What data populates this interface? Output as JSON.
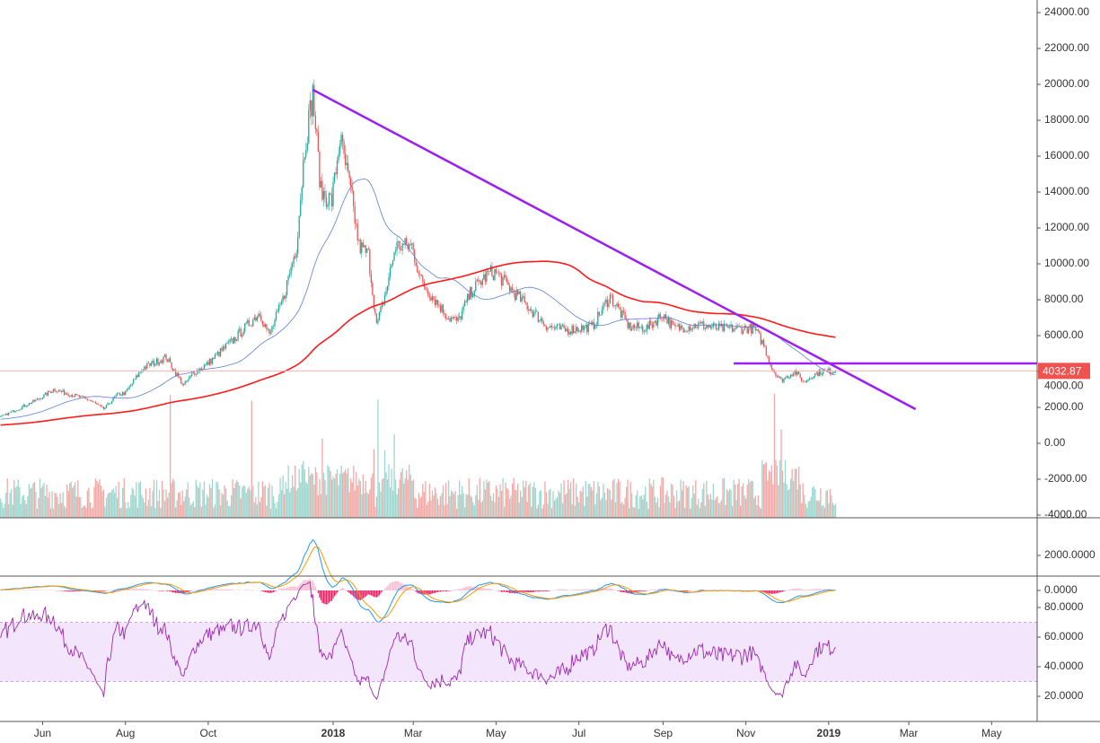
{
  "chart_data": {
    "type": "candlestick",
    "symbol_price_label": "4032.87",
    "last_price": 4032.87,
    "x_axis": {
      "reference_date": "2018-01-01",
      "unit": "days",
      "ticks": [
        {
          "day": -214,
          "label": "Jun"
        },
        {
          "day": -153,
          "label": "Aug"
        },
        {
          "day": -92,
          "label": "Oct"
        },
        {
          "day": 0,
          "label": "2018",
          "bold": true
        },
        {
          "day": 59,
          "label": "Mar"
        },
        {
          "day": 120,
          "label": "May"
        },
        {
          "day": 181,
          "label": "Jul"
        },
        {
          "day": 243,
          "label": "Sep"
        },
        {
          "day": 304,
          "label": "Nov"
        },
        {
          "day": 365,
          "label": "2019",
          "bold": true
        },
        {
          "day": 424,
          "label": "Mar"
        },
        {
          "day": 485,
          "label": "May"
        }
      ]
    },
    "price_axis": {
      "range": [
        -4000,
        24000
      ],
      "ticks": [
        "24000.00",
        "22000.00",
        "20000.00",
        "18000.00",
        "16000.00",
        "14000.00",
        "12000.00",
        "10000.00",
        "8000.00",
        "6000.00",
        "4000.00",
        "2000.00",
        "0.00",
        "-2000.00",
        "-4000.00"
      ]
    },
    "macd_axis": {
      "ticks": [
        {
          "v": 2000,
          "label": "2000.0000"
        },
        {
          "v": 0,
          "label": "0.0000"
        }
      ]
    },
    "rsi_axis": {
      "ticks": [
        {
          "v": 80,
          "label": "80.0000"
        },
        {
          "v": 60,
          "label": "60.0000"
        },
        {
          "v": 40,
          "label": "40.0000"
        },
        {
          "v": 20,
          "label": "20.0000"
        }
      ],
      "band": [
        30,
        70
      ]
    },
    "price_keypoints_day_close": [
      [
        -445,
        600
      ],
      [
        -345,
        1000
      ],
      [
        -245,
        1450
      ],
      [
        -216,
        2500
      ],
      [
        -206,
        3000
      ],
      [
        -179,
        2400
      ],
      [
        -169,
        1900
      ],
      [
        -159,
        2700
      ],
      [
        -153,
        2800
      ],
      [
        -140,
        4200
      ],
      [
        -123,
        4800
      ],
      [
        -110,
        3200
      ],
      [
        -103,
        3900
      ],
      [
        -93,
        4400
      ],
      [
        -73,
        5800
      ],
      [
        -54,
        7300
      ],
      [
        -47,
        6000
      ],
      [
        -37,
        8000
      ],
      [
        -27,
        11000
      ],
      [
        -21,
        16500
      ],
      [
        -15,
        19500
      ],
      [
        -9,
        14000
      ],
      [
        -1,
        13500
      ],
      [
        5,
        17000
      ],
      [
        13,
        14000
      ],
      [
        19,
        11000
      ],
      [
        26,
        10500
      ],
      [
        32,
        6500
      ],
      [
        39,
        8500
      ],
      [
        46,
        11000
      ],
      [
        58,
        11000
      ],
      [
        65,
        9000
      ],
      [
        75,
        8000
      ],
      [
        85,
        7000
      ],
      [
        92,
        6800
      ],
      [
        102,
        8500
      ],
      [
        115,
        9500
      ],
      [
        120,
        9500
      ],
      [
        132,
        8500
      ],
      [
        145,
        7500
      ],
      [
        158,
        6500
      ],
      [
        171,
        6300
      ],
      [
        180,
        6400
      ],
      [
        191,
        6500
      ],
      [
        204,
        8200
      ],
      [
        218,
        6500
      ],
      [
        231,
        6400
      ],
      [
        243,
        7200
      ],
      [
        251,
        6400
      ],
      [
        270,
        6600
      ],
      [
        284,
        6400
      ],
      [
        310,
        6400
      ],
      [
        317,
        5500
      ],
      [
        323,
        4200
      ],
      [
        330,
        3500
      ],
      [
        340,
        4000
      ],
      [
        347,
        3400
      ],
      [
        353,
        3800
      ],
      [
        360,
        4000
      ],
      [
        370,
        4032.87
      ]
    ],
    "visible_start_day": -245,
    "series": [
      {
        "name": "SMA short",
        "color": "#5b7fd6",
        "period": 50
      },
      {
        "name": "SMA long",
        "color": "#ff1a1a",
        "period": 200
      }
    ],
    "volume_spike_days": [
      -120,
      -22,
      -8,
      30,
      33,
      38,
      -60,
      45,
      325,
      330
    ],
    "macd": {
      "fast": 12,
      "slow": 26,
      "signal": 9,
      "macd_color": "#2196f3",
      "signal_color": "#ff9800",
      "hist_color": "#e91e63"
    },
    "rsi": {
      "period": 14,
      "color": "#9c27b0",
      "band_color": "#f3e5fc"
    },
    "annotations": [
      {
        "type": "trendline",
        "from": {
          "day": -15,
          "price": 19700
        },
        "to": {
          "day": 429,
          "price": 1900
        },
        "color": "#9c1ef0"
      },
      {
        "type": "horizontal_ray",
        "from_day": 295,
        "price": 4450,
        "color": "#9c1ef0"
      }
    ],
    "up_color": "#26a69a",
    "down_color": "#ef5350"
  }
}
